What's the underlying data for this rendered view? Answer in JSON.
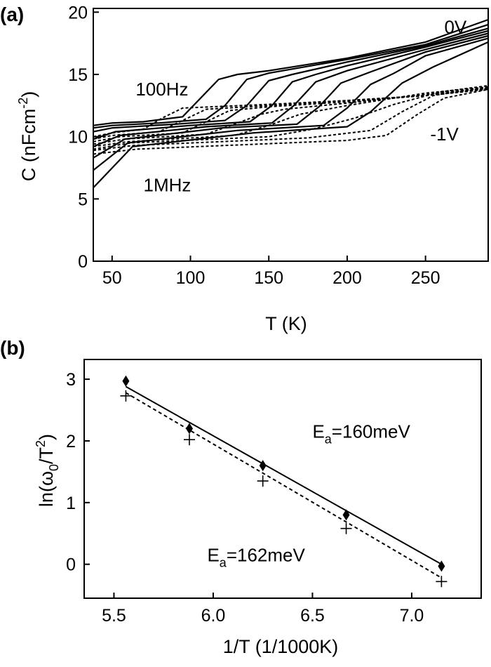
{
  "chart_data": [
    {
      "type": "line",
      "panel_label": "(a)",
      "xlabel": "T (K)",
      "ylabel_main": "C (nFcm",
      "ylabel_sup": "-2",
      "ylabel_close": ")",
      "xlim": [
        38,
        290
      ],
      "ylim": [
        0,
        20.3
      ],
      "xticks": [
        50,
        100,
        150,
        200,
        250
      ],
      "yticks": [
        0,
        5,
        10,
        15,
        20
      ],
      "annotations": [
        {
          "text": "0V",
          "x": 262,
          "y": 18.3
        },
        {
          "text": "100Hz",
          "x": 65,
          "y": 13.3
        },
        {
          "text": "-1V",
          "x": 253,
          "y": 9.7
        },
        {
          "text": "1MHz",
          "x": 70,
          "y": 5.6
        }
      ],
      "series": [
        {
          "style": "solid",
          "x": [
            38,
            50,
            70,
            95,
            118,
            130,
            150,
            200,
            250,
            290
          ],
          "y": [
            10.9,
            11.1,
            11.2,
            11.6,
            14.6,
            15.0,
            15.3,
            16.3,
            17.6,
            19.4
          ]
        },
        {
          "style": "solid",
          "x": [
            38,
            50,
            80,
            110,
            122,
            136,
            150,
            200,
            250,
            290
          ],
          "y": [
            10.7,
            10.9,
            11.1,
            11.4,
            12.5,
            14.6,
            15.1,
            16.2,
            17.4,
            19.0
          ]
        },
        {
          "style": "solid",
          "x": [
            38,
            50,
            90,
            122,
            136,
            150,
            165,
            200,
            250,
            290
          ],
          "y": [
            10.4,
            10.7,
            11.0,
            11.3,
            12.5,
            14.5,
            15.0,
            16.0,
            17.3,
            18.7
          ]
        },
        {
          "style": "solid",
          "x": [
            38,
            52,
            100,
            138,
            152,
            165,
            180,
            200,
            250,
            290
          ],
          "y": [
            9.8,
            10.4,
            10.9,
            11.2,
            12.5,
            14.4,
            15.0,
            15.7,
            17.2,
            18.5
          ]
        },
        {
          "style": "solid",
          "x": [
            38,
            55,
            110,
            152,
            166,
            180,
            200,
            250,
            290
          ],
          "y": [
            9.2,
            10.1,
            10.8,
            11.1,
            12.5,
            14.4,
            15.3,
            17.0,
            18.3
          ]
        },
        {
          "style": "solid",
          "x": [
            38,
            58,
            120,
            168,
            182,
            196,
            215,
            250,
            290
          ],
          "y": [
            8.3,
            9.8,
            10.7,
            11.0,
            12.4,
            14.3,
            15.2,
            16.8,
            18.1
          ]
        },
        {
          "style": "solid",
          "x": [
            38,
            60,
            130,
            185,
            200,
            215,
            230,
            250,
            290
          ],
          "y": [
            7.3,
            9.5,
            10.5,
            10.9,
            12.3,
            14.2,
            15.1,
            16.5,
            17.9
          ]
        },
        {
          "style": "solid",
          "x": [
            38,
            63,
            140,
            200,
            215,
            235,
            255,
            290
          ],
          "y": [
            5.9,
            9.2,
            10.3,
            10.8,
            12.0,
            14.3,
            15.6,
            17.6
          ]
        },
        {
          "style": "dotted",
          "x": [
            38,
            50,
            70,
            82,
            95,
            150,
            200,
            250,
            290
          ],
          "y": [
            10.0,
            10.3,
            10.6,
            11.5,
            12.3,
            12.6,
            12.9,
            13.3,
            13.8
          ]
        },
        {
          "style": "dotted",
          "x": [
            38,
            50,
            80,
            95,
            110,
            150,
            200,
            250,
            290
          ],
          "y": [
            9.8,
            10.1,
            10.4,
            11.3,
            12.2,
            12.5,
            12.9,
            13.3,
            13.8
          ]
        },
        {
          "style": "dotted",
          "x": [
            38,
            55,
            95,
            110,
            125,
            150,
            200,
            250,
            290
          ],
          "y": [
            9.6,
            10.0,
            10.3,
            11.2,
            12.1,
            12.4,
            12.8,
            13.3,
            13.9
          ]
        },
        {
          "style": "dotted",
          "x": [
            38,
            58,
            110,
            128,
            145,
            160,
            200,
            250,
            290
          ],
          "y": [
            9.4,
            9.8,
            10.2,
            11.0,
            11.8,
            12.2,
            12.7,
            13.4,
            13.9
          ]
        },
        {
          "style": "dotted",
          "x": [
            38,
            60,
            128,
            150,
            170,
            200,
            250,
            290
          ],
          "y": [
            9.2,
            9.6,
            10.1,
            10.9,
            11.8,
            12.5,
            13.5,
            14.0
          ]
        },
        {
          "style": "dotted",
          "x": [
            38,
            62,
            150,
            178,
            205,
            230,
            260,
            290
          ],
          "y": [
            9.0,
            9.5,
            10.0,
            10.6,
            11.5,
            12.6,
            13.6,
            14.1
          ]
        },
        {
          "style": "dotted",
          "x": [
            38,
            64,
            175,
            215,
            235,
            255,
            290
          ],
          "y": [
            8.9,
            9.3,
            9.9,
            10.5,
            12.0,
            13.3,
            14.0
          ]
        },
        {
          "style": "dotted",
          "x": [
            38,
            66,
            200,
            225,
            245,
            262,
            290
          ],
          "y": [
            8.6,
            9.0,
            9.7,
            10.1,
            11.8,
            13.1,
            13.8
          ]
        }
      ]
    },
    {
      "type": "scatter",
      "panel_label": "(b)",
      "xlabel": "1/T (1/1000K)",
      "ylabel_main": "ln(ω",
      "ylabel_sub": "0",
      "ylabel_mid": "/T",
      "ylabel_sup": "2",
      "ylabel_close": ")",
      "xlim": [
        5.35,
        7.35
      ],
      "ylim": [
        -0.55,
        3.32
      ],
      "xticks": [
        5.5,
        6.0,
        6.5,
        7.0
      ],
      "xtick_labels": [
        "5.5",
        "6.0",
        "6.5",
        "7.0"
      ],
      "yticks": [
        0,
        1,
        2,
        3
      ],
      "annotations": [
        {
          "main": "E",
          "sub": "a",
          "rest": "=160meV",
          "x": 6.5,
          "y": 2.05
        },
        {
          "main": "E",
          "sub": "a",
          "rest": "=162meV",
          "x": 5.97,
          "y": 0.05
        }
      ],
      "series": [
        {
          "marker": "diamond",
          "x": [
            5.56,
            5.88,
            6.25,
            6.67,
            7.15
          ],
          "y": [
            2.97,
            2.2,
            1.6,
            0.8,
            -0.03
          ],
          "fit": {
            "style": "solid",
            "x": [
              5.56,
              7.15
            ],
            "y": [
              2.88,
              0.0
            ]
          }
        },
        {
          "marker": "plus",
          "x": [
            5.56,
            5.88,
            6.25,
            6.67,
            7.15
          ],
          "y": [
            2.73,
            2.02,
            1.35,
            0.58,
            -0.28
          ],
          "fit": {
            "style": "dashed",
            "x": [
              5.56,
              7.15
            ],
            "y": [
              2.78,
              -0.22
            ]
          }
        }
      ]
    }
  ]
}
